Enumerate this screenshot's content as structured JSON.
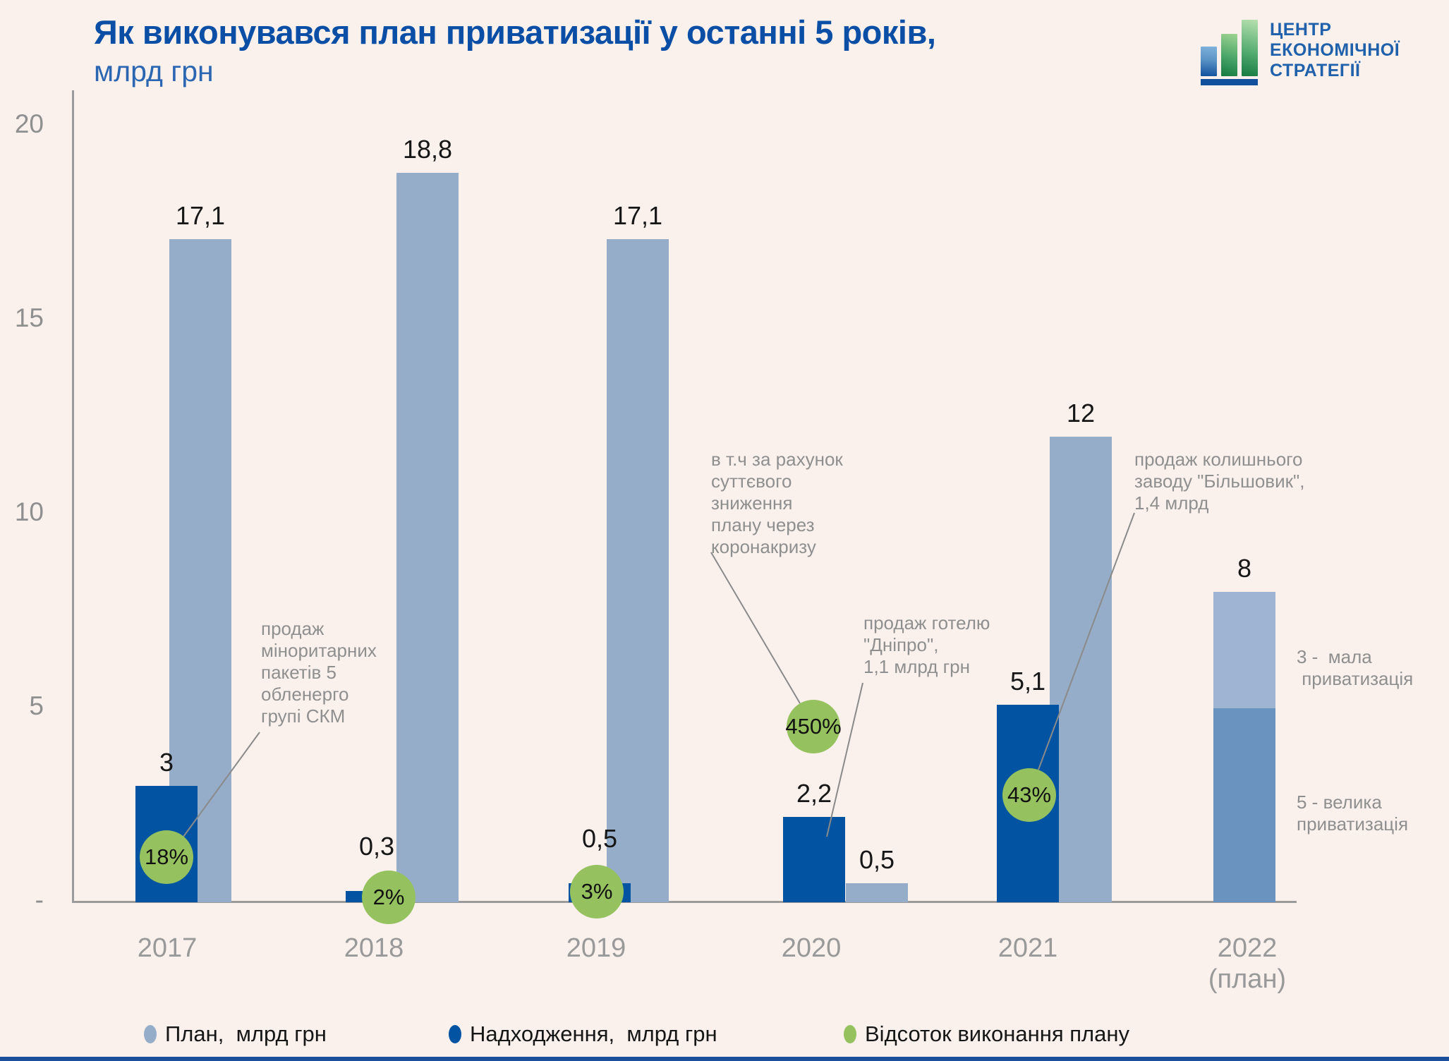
{
  "title": "Як виконувався план приватизації у останні 5 років,",
  "subtitle": "млрд грн",
  "logo": {
    "line1": "ЦЕНТР",
    "line2": "ЕКОНОМІЧНОЇ",
    "line3": "СТРАТЕГІЇ"
  },
  "colors": {
    "background": "#fbf1ec",
    "title_blue": "#0a4fa5",
    "subtitle_blue": "#2a66b2",
    "plan_bar": "#96adc9",
    "actual_bar": "#0253a2",
    "percent_green": "#95c25e",
    "stack_small_2022": "#9fb4d2",
    "stack_big_2022": "#6b93c0",
    "gray_text": "#8f8f8f",
    "axis_gray": "#9b9b9b"
  },
  "chart_data": {
    "type": "bar",
    "title": "Як виконувався план приватизації у останні 5 років, млрд грн",
    "categories": [
      "2017",
      "2018",
      "2019",
      "2020",
      "2021",
      "2022\n(план)"
    ],
    "series": [
      {
        "name": "План, млрд грн",
        "color": "#96adc9",
        "values": [
          17.1,
          18.8,
          17.1,
          0.5,
          12,
          null
        ]
      },
      {
        "name": "Надходження, млрд грн",
        "color": "#0253a2",
        "values": [
          3,
          0.3,
          0.5,
          2.2,
          5.1,
          null
        ]
      },
      {
        "name": "Відсоток виконання плану",
        "color": "#95c25e",
        "values_percent": [
          18,
          2,
          3,
          450,
          43,
          null
        ]
      }
    ],
    "stacked_2022_plan": {
      "total": 8,
      "total_label": "8",
      "segments": [
        {
          "value": 3,
          "color": "#9fb4d2"
        },
        {
          "value": 5,
          "color": "#6b93c0"
        }
      ]
    },
    "display_labels": {
      "plan": [
        "17,1",
        "18,8",
        "17,1",
        "0,5",
        "12",
        "8"
      ],
      "actual": [
        "3",
        "0,3",
        "0,5",
        "2,2",
        "5,1",
        ""
      ],
      "percent": [
        "18%",
        "2%",
        "3%",
        "450%",
        "43%",
        ""
      ]
    },
    "ylim": [
      0,
      20
    ],
    "yticks": [
      "20",
      "15",
      "10",
      "5",
      "-"
    ],
    "grid": false,
    "legend_position": "bottom",
    "annotations": [
      "продаж\nміноритарних\nпакетів 5\nобленерго\nгрупі СКМ",
      "в т.ч за рахунок\nсуттєвого\nзниження\nплану через\nкоронакризу",
      "продаж готелю\n\"Дніпро\",\n1,1 млрд грн",
      "продаж колишнього\nзаводу \"Більшовик\",\n1,4 млрд",
      "3 -  мала\n приватизація",
      "5 - велика\nприватизація"
    ]
  },
  "legend": [
    {
      "label": "План,  млрд грн",
      "color": "#96adc9"
    },
    {
      "label": "Надходження,  млрд грн",
      "color": "#0253a2"
    },
    {
      "label": "Відсоток виконання плану",
      "color": "#95c25e"
    }
  ]
}
